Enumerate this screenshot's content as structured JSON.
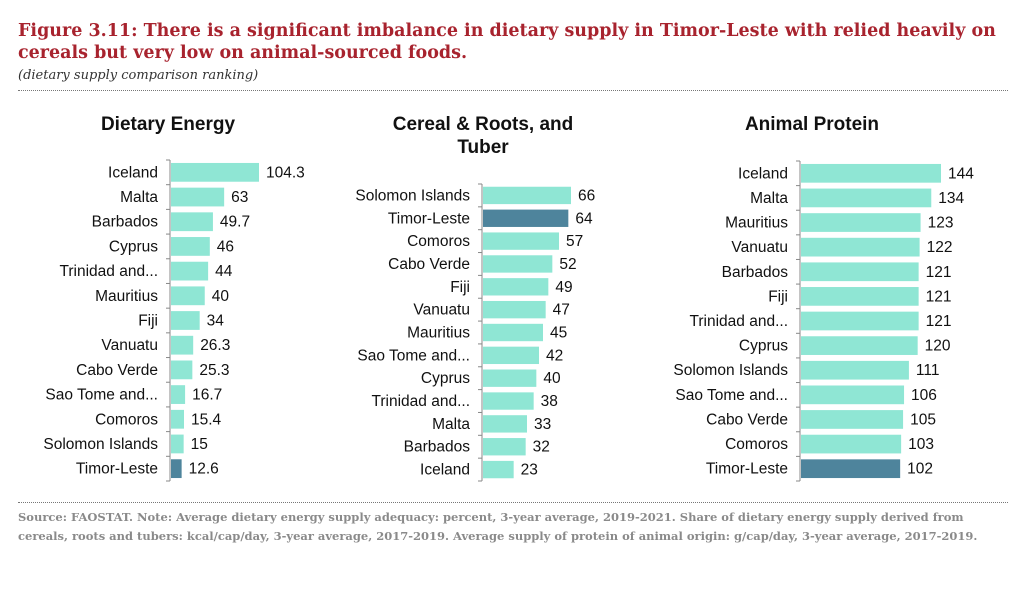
{
  "figure": {
    "title": "Figure 3.11: There is a significant imbalance in dietary supply in Timor-Leste with relied heavily on cereals but very low on animal-sourced foods.",
    "subtitle": "(dietary supply comparison ranking)",
    "source": "Source: FAOSTAT. Note: Average dietary energy supply adequacy: percent, 3-year average, 2019-2021. Share of dietary energy supply derived from cereals, roots and tubers: kcal/cap/day, 3-year average, 2017-2019. Average supply of protein of animal origin: g/cap/day, 3-year average, 2017-2019."
  },
  "colors": {
    "bar": "#8fe6d4",
    "highlight": "#4e849c",
    "axis": "#888888"
  },
  "chart_data": [
    {
      "type": "bar",
      "orientation": "horizontal",
      "title": "Dietary Energy",
      "categories": [
        "Iceland",
        "Malta",
        "Barbados",
        "Cyprus",
        "Trinidad and...",
        "Mauritius",
        "Fiji",
        "Vanuatu",
        "Cabo Verde",
        "Sao Tome and...",
        "Comoros",
        "Solomon Islands",
        "Timor-Leste"
      ],
      "values": [
        104.3,
        63,
        49.7,
        46,
        44,
        40,
        34,
        26.3,
        25.3,
        16.7,
        15.4,
        15,
        12.6
      ],
      "labels": [
        "104.3",
        "63",
        "49.7",
        "46",
        "44",
        "40",
        "34",
        "26.3",
        "25.3",
        "16.7",
        "15.4",
        "15",
        "12.6"
      ],
      "highlight": "Timor-Leste",
      "xlim": [
        0,
        104.3
      ]
    },
    {
      "type": "bar",
      "orientation": "horizontal",
      "title": "Cereal & Roots, and Tuber",
      "title_lines": [
        "Cereal & Roots, and",
        "Tuber"
      ],
      "categories": [
        "Solomon Islands",
        "Timor-Leste",
        "Comoros",
        "Cabo Verde",
        "Fiji",
        "Vanuatu",
        "Mauritius",
        "Sao Tome and...",
        "Cyprus",
        "Trinidad and...",
        "Malta",
        "Barbados",
        "Iceland"
      ],
      "values": [
        66,
        64,
        57,
        52,
        49,
        47,
        45,
        42,
        40,
        38,
        33,
        32,
        23
      ],
      "labels": [
        "66",
        "64",
        "57",
        "52",
        "49",
        "47",
        "45",
        "42",
        "40",
        "38",
        "33",
        "32",
        "23"
      ],
      "highlight": "Timor-Leste",
      "xlim": [
        0,
        66
      ]
    },
    {
      "type": "bar",
      "orientation": "horizontal",
      "title": "Animal Protein",
      "categories": [
        "Iceland",
        "Malta",
        "Mauritius",
        "Vanuatu",
        "Barbados",
        "Fiji",
        "Trinidad and...",
        "Cyprus",
        "Solomon Islands",
        "Sao Tome and...",
        "Cabo Verde",
        "Comoros",
        "Timor-Leste"
      ],
      "values": [
        144,
        134,
        123,
        122,
        121,
        121,
        121,
        120,
        111,
        106,
        105,
        103,
        102
      ],
      "labels": [
        "144",
        "134",
        "123",
        "122",
        "121",
        "121",
        "121",
        "120",
        "111",
        "106",
        "105",
        "103",
        "102"
      ],
      "highlight": "Timor-Leste",
      "xlim": [
        0,
        144
      ]
    }
  ]
}
